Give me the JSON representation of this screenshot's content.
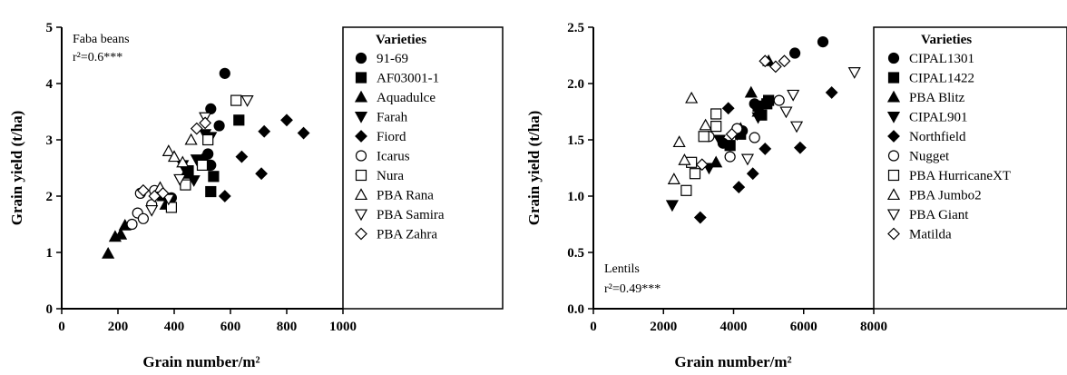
{
  "chart_data": [
    {
      "type": "scatter",
      "title": "",
      "annotation": "Faba beans",
      "r2_label": "r²=0.6***",
      "xlabel": "Grain number/m²",
      "ylabel": "Grain yield (t/ha)",
      "xlim": [
        0,
        1000
      ],
      "ylim": [
        0,
        5
      ],
      "xticks": [
        "0",
        "200",
        "400",
        "600",
        "800",
        "1000"
      ],
      "yticks": [
        "0",
        "1",
        "2",
        "3",
        "4",
        "5"
      ],
      "legend_title": "Varieties",
      "legend_position": "right",
      "series": [
        {
          "name": "91-69",
          "marker": "circle-filled",
          "points": [
            [
              580,
              4.18
            ],
            [
              530,
              3.55
            ],
            [
              560,
              3.25
            ],
            [
              520,
              2.75
            ],
            [
              530,
              2.55
            ],
            [
              390,
              1.97
            ]
          ]
        },
        {
          "name": "AF03001-1",
          "marker": "square-filled",
          "points": [
            [
              630,
              3.35
            ],
            [
              510,
              2.55
            ],
            [
              540,
              2.35
            ],
            [
              450,
              2.45
            ],
            [
              530,
              2.08
            ]
          ]
        },
        {
          "name": "Aquadulce",
          "marker": "triangle-up-filled",
          "points": [
            [
              165,
              0.98
            ],
            [
              190,
              1.28
            ],
            [
              210,
              1.32
            ],
            [
              225,
              1.48
            ],
            [
              360,
              2.0
            ],
            [
              370,
              1.85
            ],
            [
              440,
              2.4
            ]
          ]
        },
        {
          "name": "Farah",
          "marker": "triangle-down-filled",
          "points": [
            [
              470,
              2.28
            ],
            [
              530,
              3.05
            ],
            [
              430,
              2.55
            ],
            [
              480,
              2.65
            ],
            [
              510,
              3.1
            ]
          ]
        },
        {
          "name": "Fiord",
          "marker": "diamond-filled",
          "points": [
            [
              800,
              3.35
            ],
            [
              860,
              3.12
            ],
            [
              720,
              3.15
            ],
            [
              710,
              2.4
            ],
            [
              640,
              2.7
            ],
            [
              580,
              2.0
            ],
            [
              500,
              2.65
            ]
          ]
        },
        {
          "name": "Icarus",
          "marker": "circle-open",
          "points": [
            [
              250,
              1.5
            ],
            [
              270,
              1.7
            ],
            [
              280,
              2.05
            ],
            [
              330,
              2.1
            ],
            [
              320,
              1.85
            ],
            [
              290,
              1.6
            ]
          ]
        },
        {
          "name": "Nura",
          "marker": "square-open",
          "points": [
            [
              620,
              3.7
            ],
            [
              390,
              1.8
            ],
            [
              440,
              2.2
            ],
            [
              500,
              2.55
            ],
            [
              520,
              3.0
            ]
          ]
        },
        {
          "name": "PBA Rana",
          "marker": "triangle-up-open",
          "points": [
            [
              350,
              2.15
            ],
            [
              380,
              2.8
            ],
            [
              460,
              3.0
            ],
            [
              430,
              2.6
            ],
            [
              400,
              2.7
            ]
          ]
        },
        {
          "name": "PBA Samira",
          "marker": "triangle-down-open",
          "points": [
            [
              660,
              3.7
            ],
            [
              320,
              1.75
            ],
            [
              380,
              1.95
            ],
            [
              420,
              2.3
            ],
            [
              510,
              3.4
            ]
          ]
        },
        {
          "name": "PBA Zahra",
          "marker": "diamond-open",
          "points": [
            [
              290,
              2.1
            ],
            [
              330,
              2.0
            ],
            [
              480,
              3.2
            ],
            [
              510,
              3.3
            ],
            [
              360,
              2.05
            ]
          ]
        }
      ]
    },
    {
      "type": "scatter",
      "title": "",
      "annotation": "Lentils",
      "r2_label": "r²=0.49***",
      "xlabel": "Grain number/m²",
      "ylabel": "Grain yield (t/ha)",
      "xlim": [
        0,
        8000
      ],
      "ylim": [
        0,
        2.5
      ],
      "xticks": [
        "0",
        "2000",
        "4000",
        "6000",
        "8000"
      ],
      "yticks": [
        "0.0",
        "0.5",
        "1.0",
        "1.5",
        "2.0",
        "2.5"
      ],
      "legend_title": "Varieties",
      "legend_position": "right",
      "series": [
        {
          "name": "CIPAL1301",
          "marker": "circle-filled",
          "points": [
            [
              6550,
              2.37
            ],
            [
              5750,
              2.27
            ],
            [
              4250,
              1.58
            ],
            [
              3700,
              1.47
            ],
            [
              4600,
              1.82
            ]
          ]
        },
        {
          "name": "CIPAL1422",
          "marker": "square-filled",
          "points": [
            [
              4800,
              1.72
            ],
            [
              4950,
              1.82
            ],
            [
              3900,
              1.45
            ],
            [
              4200,
              1.55
            ],
            [
              4700,
              1.8
            ],
            [
              5000,
              1.85
            ]
          ]
        },
        {
          "name": "PBA Blitz",
          "marker": "triangle-up-filled",
          "points": [
            [
              5000,
              2.2
            ],
            [
              4500,
              1.92
            ],
            [
              3500,
              1.3
            ],
            [
              4200,
              1.6
            ],
            [
              4700,
              1.75
            ]
          ]
        },
        {
          "name": "CIPAL901",
          "marker": "triangle-down-filled",
          "points": [
            [
              2250,
              0.92
            ],
            [
              3300,
              1.25
            ],
            [
              3600,
              1.5
            ],
            [
              4100,
              1.55
            ],
            [
              4700,
              1.7
            ]
          ]
        },
        {
          "name": "Northfield",
          "marker": "diamond-filled",
          "points": [
            [
              6800,
              1.92
            ],
            [
              5900,
              1.43
            ],
            [
              4900,
              1.42
            ],
            [
              4550,
              1.2
            ],
            [
              4150,
              1.08
            ],
            [
              3050,
              0.81
            ],
            [
              3850,
              1.78
            ]
          ]
        },
        {
          "name": "Nugget",
          "marker": "circle-open",
          "points": [
            [
              5300,
              1.85
            ],
            [
              4600,
              1.52
            ],
            [
              3900,
              1.35
            ],
            [
              4100,
              1.6
            ],
            [
              3300,
              1.53
            ]
          ]
        },
        {
          "name": "PBA HurricaneXT",
          "marker": "square-open",
          "points": [
            [
              3500,
              1.73
            ],
            [
              2650,
              1.05
            ],
            [
              2900,
              1.2
            ],
            [
              3150,
              1.53
            ],
            [
              3500,
              1.62
            ],
            [
              2800,
              1.3
            ]
          ]
        },
        {
          "name": "PBA Jumbo2",
          "marker": "triangle-up-open",
          "points": [
            [
              2300,
              1.15
            ],
            [
              2800,
              1.87
            ],
            [
              2450,
              1.48
            ],
            [
              2600,
              1.32
            ],
            [
              3200,
              1.63
            ]
          ]
        },
        {
          "name": "PBA Giant",
          "marker": "triangle-down-open",
          "points": [
            [
              7450,
              2.1
            ],
            [
              5800,
              1.62
            ],
            [
              5700,
              1.9
            ],
            [
              5500,
              1.75
            ],
            [
              4400,
              1.33
            ]
          ]
        },
        {
          "name": "Matilda",
          "marker": "diamond-open",
          "points": [
            [
              5450,
              2.2
            ],
            [
              4900,
              2.2
            ],
            [
              5200,
              2.15
            ],
            [
              3950,
              1.55
            ],
            [
              3100,
              1.28
            ]
          ]
        }
      ]
    }
  ]
}
